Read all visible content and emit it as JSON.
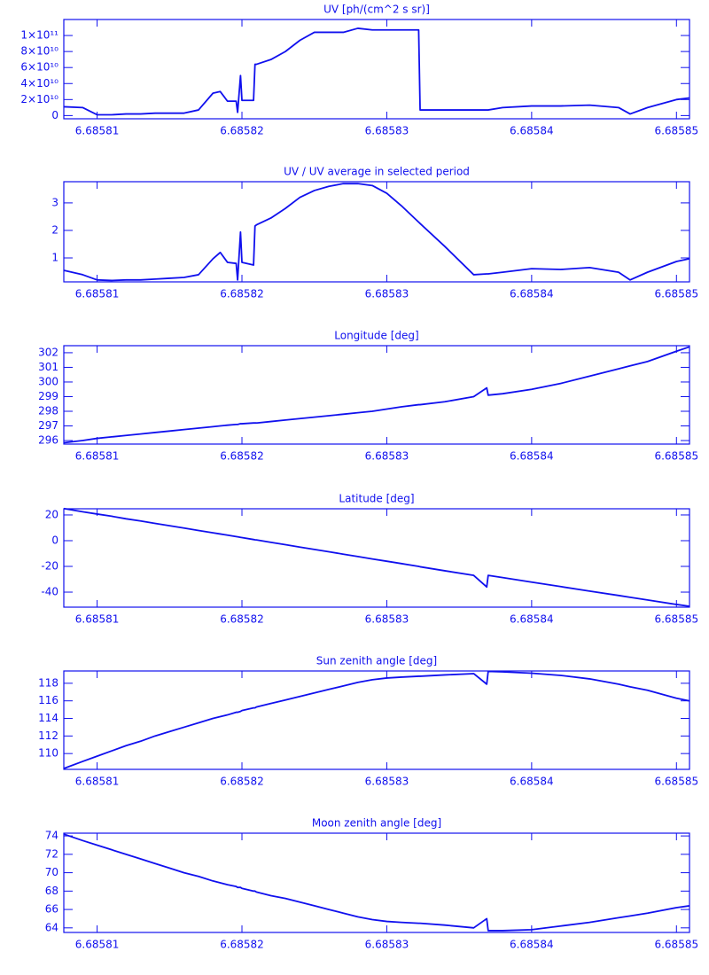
{
  "chart_data": [
    {
      "type": "line",
      "title": "UV [ph/(cm^2 s sr)]",
      "color": "#1010ee",
      "x": [
        6.6858077,
        6.685809,
        6.68581,
        6.685811,
        6.685812,
        6.685813,
        6.685814,
        6.685815,
        6.685816,
        6.685817,
        6.685818,
        6.6858185,
        6.685819,
        6.6858196,
        6.6858197,
        6.6858199,
        6.68582,
        6.6858208,
        6.6858209,
        6.685821,
        6.685822,
        6.685823,
        6.685824,
        6.685825,
        6.685826,
        6.685827,
        6.685828,
        6.685829,
        6.68583,
        6.685831,
        6.6858322,
        6.6858323,
        6.685834,
        6.685836,
        6.6858369,
        6.685837,
        6.685838,
        6.68584,
        6.685842,
        6.685844,
        6.685846,
        6.6858468,
        6.685848,
        6.68585,
        6.6858509
      ],
      "values": [
        11000000000.0,
        10000000000.0,
        1000000000.0,
        1000000000.0,
        2000000000.0,
        2000000000.0,
        3000000000.0,
        3000000000.0,
        3000000000.0,
        7000000000.0,
        28000000000.0,
        30000000000.0,
        18000000000.0,
        18000000000.0,
        4000000000.0,
        50000000000.0,
        19000000000.0,
        19000000000.0,
        64000000000.0,
        64000000000.0,
        70000000000.0,
        80000000000.0,
        94000000000.0,
        104000000000.0,
        104000000000.0,
        104000000000.0,
        109000000000.0,
        107000000000.0,
        107000000000.0,
        107000000000.0,
        107000000000.0,
        7000000000.0,
        7000000000.0,
        7000000000.0,
        7000000000.0,
        7000000000.0,
        10000000000.0,
        12000000000.0,
        12000000000.0,
        13000000000.0,
        10000000000.0,
        2000000000.0,
        10000000000.0,
        20000000000.0,
        22000000000.0
      ],
      "xlim": [
        6.6858077,
        6.6858509
      ],
      "xticks": [
        6.68581,
        6.68582,
        6.68583,
        6.68584,
        6.68585
      ],
      "ylim": [
        -4000000000.0,
        120000000000.0
      ],
      "yticks": [
        {
          "value": 0,
          "label": "0"
        },
        {
          "value": 20000000000.0,
          "label": "2×10¹⁰"
        },
        {
          "value": 40000000000.0,
          "label": "4×10¹⁰"
        },
        {
          "value": 60000000000.0,
          "label": "6×10¹⁰"
        },
        {
          "value": 80000000000.0,
          "label": "8×10¹⁰"
        },
        {
          "value": 100000000000.0,
          "label": "1×10¹¹"
        }
      ]
    },
    {
      "type": "line",
      "title": "UV / UV average in selected period",
      "color": "#1010ee",
      "x": [
        6.6858077,
        6.685809,
        6.68581,
        6.685811,
        6.685812,
        6.685813,
        6.685814,
        6.685815,
        6.685816,
        6.685817,
        6.685818,
        6.6858185,
        6.685819,
        6.6858196,
        6.6858197,
        6.6858199,
        6.68582,
        6.6858208,
        6.6858209,
        6.685821,
        6.685822,
        6.685823,
        6.685824,
        6.685825,
        6.685826,
        6.685827,
        6.685828,
        6.685829,
        6.68583,
        6.685831,
        6.6858322,
        6.6858323,
        6.685834,
        6.685836,
        6.6858369,
        6.685837,
        6.685838,
        6.68584,
        6.685842,
        6.685844,
        6.685846,
        6.6858468,
        6.685848,
        6.68585,
        6.6858509
      ],
      "values": [
        0.55,
        0.39,
        0.2,
        0.18,
        0.2,
        0.2,
        0.23,
        0.26,
        0.29,
        0.39,
        0.97,
        1.2,
        0.84,
        0.8,
        0.2,
        1.94,
        0.84,
        0.74,
        2.16,
        2.2,
        2.45,
        2.8,
        3.2,
        3.45,
        3.6,
        3.7,
        3.7,
        3.63,
        3.35,
        2.9,
        2.3,
        2.25,
        1.42,
        0.39,
        0.42,
        0.42,
        0.48,
        0.61,
        0.58,
        0.65,
        0.48,
        0.2,
        0.48,
        0.87,
        0.97
      ],
      "xlim": [
        6.6858077,
        6.6858509
      ],
      "xticks": [
        6.68581,
        6.68582,
        6.68583,
        6.68584,
        6.68585
      ],
      "ylim": [
        0.13,
        3.77
      ],
      "yticks": [
        1,
        2,
        3
      ]
    },
    {
      "type": "line",
      "title": "Longitude [deg]",
      "color": "#1010ee",
      "x": [
        6.6858077,
        6.685809,
        6.68581,
        6.685811,
        6.685812,
        6.685813,
        6.685814,
        6.685815,
        6.685816,
        6.685817,
        6.685818,
        6.6858185,
        6.685819,
        6.6858196,
        6.6858197,
        6.6858199,
        6.68582,
        6.6858208,
        6.6858209,
        6.685821,
        6.685822,
        6.685823,
        6.685824,
        6.685825,
        6.685826,
        6.685827,
        6.685828,
        6.685829,
        6.68583,
        6.685831,
        6.6858322,
        6.6858323,
        6.685834,
        6.685836,
        6.6858369,
        6.685837,
        6.685838,
        6.68584,
        6.685842,
        6.685844,
        6.685846,
        6.6858468,
        6.685848,
        6.68585,
        6.6858509
      ],
      "values": [
        295.85,
        296.0,
        296.15,
        296.25,
        296.35,
        296.45,
        296.55,
        296.65,
        296.75,
        296.85,
        296.95,
        297.0,
        297.05,
        297.1,
        297.1,
        297.15,
        297.15,
        297.2,
        297.2,
        297.2,
        297.3,
        297.4,
        297.5,
        297.6,
        297.7,
        297.8,
        297.9,
        298.0,
        298.15,
        298.3,
        298.45,
        298.45,
        298.65,
        299.0,
        299.6,
        299.1,
        299.2,
        299.5,
        299.9,
        300.4,
        300.9,
        301.1,
        301.4,
        302.1,
        302.4
      ],
      "xlim": [
        6.6858077,
        6.6858509
      ],
      "xticks": [
        6.68581,
        6.68582,
        6.68583,
        6.68584,
        6.68585
      ],
      "ylim": [
        295.76,
        302.48
      ],
      "yticks": [
        296,
        297,
        298,
        299,
        300,
        301,
        302
      ]
    },
    {
      "type": "line",
      "title": "Latitude [deg]",
      "color": "#1010ee",
      "x": [
        6.6858077,
        6.685809,
        6.68581,
        6.685811,
        6.685812,
        6.685813,
        6.685814,
        6.685815,
        6.685816,
        6.685817,
        6.685818,
        6.6858185,
        6.685819,
        6.6858196,
        6.6858197,
        6.6858199,
        6.68582,
        6.6858208,
        6.6858209,
        6.685821,
        6.685822,
        6.685823,
        6.685824,
        6.685825,
        6.685826,
        6.685827,
        6.685828,
        6.685829,
        6.68583,
        6.685831,
        6.6858322,
        6.6858323,
        6.685834,
        6.685836,
        6.6858369,
        6.685837,
        6.685838,
        6.68584,
        6.685842,
        6.685844,
        6.685846,
        6.6858468,
        6.685848,
        6.68585,
        6.6858509
      ],
      "values": [
        25,
        22.5,
        20.7,
        19.0,
        17.0,
        15.3,
        13.4,
        11.6,
        9.8,
        7.9,
        6.1,
        5.2,
        4.3,
        3.2,
        3.0,
        2.6,
        2.4,
        0.9,
        0.7,
        0.6,
        -1.3,
        -3.1,
        -5.0,
        -6.8,
        -8.6,
        -10.5,
        -12.3,
        -14.2,
        -16.0,
        -17.8,
        -20.0,
        -20.3,
        -23.4,
        -27.0,
        -36.0,
        -27.0,
        -28.7,
        -32.2,
        -35.7,
        -39.2,
        -42.6,
        -44.0,
        -46.1,
        -49.6,
        -51.0
      ],
      "xlim": [
        6.6858077,
        6.6858509
      ],
      "xticks": [
        6.68581,
        6.68582,
        6.68583,
        6.68584,
        6.68585
      ],
      "ylim": [
        -51.7,
        24.8
      ],
      "yticks": [
        -40,
        -20,
        0,
        20
      ]
    },
    {
      "type": "line",
      "title": "Sun zenith angle [deg]",
      "color": "#1010ee",
      "x": [
        6.6858077,
        6.685809,
        6.68581,
        6.685811,
        6.685812,
        6.685813,
        6.685814,
        6.685815,
        6.685816,
        6.685817,
        6.685818,
        6.6858185,
        6.685819,
        6.6858196,
        6.6858197,
        6.6858199,
        6.68582,
        6.6858208,
        6.6858209,
        6.685821,
        6.685822,
        6.685823,
        6.685824,
        6.685825,
        6.685826,
        6.685827,
        6.685828,
        6.685829,
        6.68583,
        6.685831,
        6.6858322,
        6.6858323,
        6.685834,
        6.685836,
        6.6858369,
        6.685837,
        6.685838,
        6.68584,
        6.685842,
        6.685844,
        6.685846,
        6.6858468,
        6.685848,
        6.68585,
        6.6858509
      ],
      "values": [
        108.3,
        109.1,
        109.7,
        110.3,
        110.9,
        111.4,
        112.0,
        112.5,
        113.0,
        113.5,
        114.0,
        114.2,
        114.4,
        114.7,
        114.7,
        114.8,
        114.9,
        115.2,
        115.2,
        115.3,
        115.7,
        116.1,
        116.5,
        116.9,
        117.3,
        117.7,
        118.1,
        118.4,
        118.6,
        118.7,
        118.8,
        118.8,
        118.95,
        119.1,
        117.9,
        119.35,
        119.3,
        119.15,
        118.9,
        118.5,
        117.9,
        117.6,
        117.2,
        116.3,
        116.0
      ],
      "xlim": [
        6.6858077,
        6.6858509
      ],
      "xticks": [
        6.68581,
        6.68582,
        6.68583,
        6.68584,
        6.68585
      ],
      "ylim": [
        108.2,
        119.4
      ],
      "yticks": [
        110,
        112,
        114,
        116,
        118
      ]
    },
    {
      "type": "line",
      "title": "Moon zenith angle [deg]",
      "color": "#1010ee",
      "x": [
        6.6858077,
        6.685809,
        6.68581,
        6.685811,
        6.685812,
        6.685813,
        6.685814,
        6.685815,
        6.685816,
        6.685817,
        6.685818,
        6.6858185,
        6.685819,
        6.6858196,
        6.6858197,
        6.6858199,
        6.68582,
        6.6858208,
        6.6858209,
        6.685821,
        6.685822,
        6.685823,
        6.685824,
        6.685825,
        6.685826,
        6.685827,
        6.685828,
        6.685829,
        6.68583,
        6.685831,
        6.6858322,
        6.6858323,
        6.685834,
        6.685836,
        6.6858369,
        6.685837,
        6.685838,
        6.68584,
        6.685842,
        6.685844,
        6.685846,
        6.6858468,
        6.685848,
        6.68585,
        6.6858509
      ],
      "values": [
        74.2,
        73.5,
        73.0,
        72.5,
        72.0,
        71.5,
        71.0,
        70.5,
        70.0,
        69.6,
        69.1,
        68.9,
        68.7,
        68.5,
        68.4,
        68.4,
        68.3,
        68.0,
        68.0,
        67.9,
        67.5,
        67.2,
        66.8,
        66.4,
        66.0,
        65.6,
        65.2,
        64.9,
        64.7,
        64.6,
        64.5,
        64.5,
        64.3,
        64.0,
        65.0,
        63.7,
        63.7,
        63.8,
        64.2,
        64.6,
        65.1,
        65.3,
        65.6,
        66.2,
        66.4
      ],
      "xlim": [
        6.6858077,
        6.6858509
      ],
      "xticks": [
        6.68581,
        6.68582,
        6.68583,
        6.68584,
        6.68585
      ],
      "ylim": [
        63.5,
        74.3
      ],
      "yticks": [
        64,
        66,
        68,
        70,
        72,
        74
      ]
    }
  ]
}
